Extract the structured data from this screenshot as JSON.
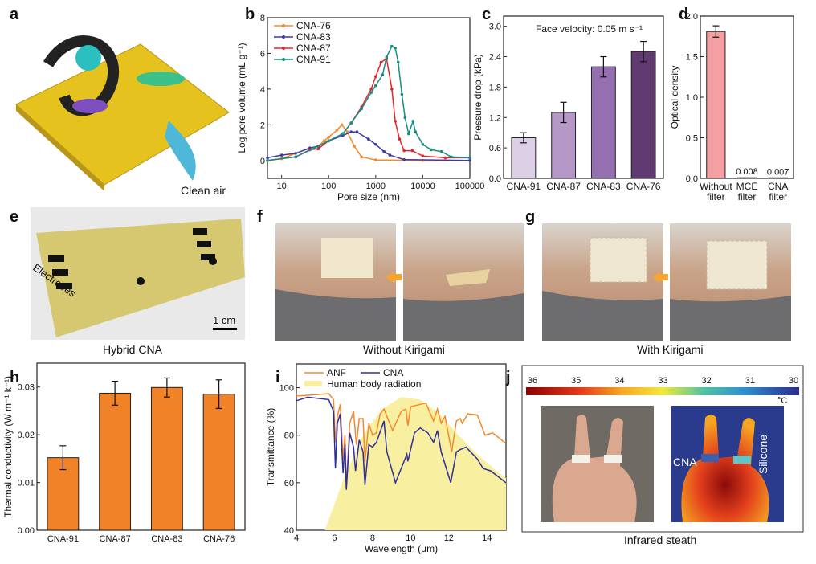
{
  "panel_labels": [
    "a",
    "b",
    "c",
    "d",
    "e",
    "f",
    "g",
    "h",
    "i",
    "j"
  ],
  "panel_a": {
    "caption": "Clean air"
  },
  "panel_e": {
    "caption": "Hybrid CNA",
    "overlay_label": "Electrodes",
    "scale_bar": "1 cm"
  },
  "panel_f": {
    "caption": "Without Kirigami"
  },
  "panel_g": {
    "caption": "With Kirigami"
  },
  "panel_j": {
    "caption": "Infrared steath",
    "colorbar_ticks": [
      "36",
      "35",
      "34",
      "33",
      "32",
      "31",
      "30"
    ],
    "colorbar_unit": "°C",
    "labels": {
      "cna": "CNA",
      "silicone": "Silicone"
    }
  },
  "colors": {
    "cna76": "#f28a2e",
    "cna83": "#3d3aa5",
    "cna87": "#e3262b",
    "cna91": "#168f83",
    "orange_bar": "#f08228",
    "pink_bar": "#f4a0a3",
    "body_radiation": "#f8f0a0"
  },
  "chart_data": [
    {
      "id": "b",
      "type": "line",
      "xlabel": "Pore size (nm)",
      "ylabel": "Log pore volume (mL g⁻¹)",
      "xscale": "log",
      "xlim": [
        5,
        100000
      ],
      "ylim": [
        -1,
        8
      ],
      "xticks": [
        "10",
        "100",
        "1000",
        "10000",
        "100000"
      ],
      "yticks": [
        "0",
        "2",
        "4",
        "6",
        "8"
      ],
      "legend_placement": "top-left",
      "series": [
        {
          "name": "CNA-76",
          "color": "#f28a2e",
          "points": [
            [
              5,
              0
            ],
            [
              10,
              0.1
            ],
            [
              20,
              0.4
            ],
            [
              40,
              0.7
            ],
            [
              60,
              0.8
            ],
            [
              80,
              1.1
            ],
            [
              100,
              1.3
            ],
            [
              150,
              1.7
            ],
            [
              190,
              2.0
            ],
            [
              250,
              1.6
            ],
            [
              350,
              0.8
            ],
            [
              500,
              0.2
            ],
            [
              1000,
              0.03
            ],
            [
              10000,
              0
            ],
            [
              100000,
              0
            ]
          ]
        },
        {
          "name": "CNA-83",
          "color": "#3d3aa5",
          "points": [
            [
              5,
              0.15
            ],
            [
              10,
              0.3
            ],
            [
              20,
              0.4
            ],
            [
              40,
              0.7
            ],
            [
              60,
              0.8
            ],
            [
              100,
              1.1
            ],
            [
              200,
              1.4
            ],
            [
              300,
              1.6
            ],
            [
              400,
              1.6
            ],
            [
              700,
              1.2
            ],
            [
              1000,
              0.9
            ],
            [
              1500,
              0.5
            ],
            [
              2000,
              0.3
            ],
            [
              4000,
              0.05
            ],
            [
              100000,
              0
            ]
          ]
        },
        {
          "name": "CNA-87",
          "color": "#e3262b",
          "points": [
            [
              5,
              0
            ],
            [
              20,
              0.2
            ],
            [
              40,
              0.6
            ],
            [
              60,
              0.65
            ],
            [
              100,
              1.1
            ],
            [
              200,
              1.5
            ],
            [
              300,
              2.1
            ],
            [
              500,
              3.0
            ],
            [
              800,
              4.0
            ],
            [
              1000,
              4.7
            ],
            [
              1300,
              5.5
            ],
            [
              1700,
              5.7
            ],
            [
              2200,
              4.0
            ],
            [
              2600,
              2.2
            ],
            [
              3200,
              1.2
            ],
            [
              4000,
              0.55
            ],
            [
              6000,
              0.55
            ],
            [
              10000,
              0.25
            ],
            [
              30000,
              0.15
            ],
            [
              100000,
              0.15
            ]
          ]
        },
        {
          "name": "CNA-91",
          "color": "#168f83",
          "points": [
            [
              5,
              0
            ],
            [
              20,
              0.2
            ],
            [
              50,
              0.7
            ],
            [
              100,
              1.1
            ],
            [
              200,
              1.5
            ],
            [
              300,
              2.1
            ],
            [
              500,
              2.9
            ],
            [
              800,
              3.8
            ],
            [
              1000,
              4.2
            ],
            [
              1400,
              4.8
            ],
            [
              1700,
              5.8
            ],
            [
              2200,
              6.4
            ],
            [
              2600,
              6.3
            ],
            [
              3000,
              5.5
            ],
            [
              3600,
              3.7
            ],
            [
              4200,
              2.4
            ],
            [
              5000,
              1.5
            ],
            [
              6200,
              2.2
            ],
            [
              7000,
              1.6
            ],
            [
              10000,
              0.9
            ],
            [
              15000,
              0.6
            ],
            [
              25000,
              0.5
            ],
            [
              40000,
              0.2
            ],
            [
              100000,
              0.15
            ]
          ]
        }
      ]
    },
    {
      "id": "c",
      "type": "bar",
      "ylabel": "Pressure drop (kPa)",
      "annotation": "Face velocity: 0.05 m s⁻¹",
      "ylim": [
        0,
        3.2
      ],
      "yticks": [
        "0.0",
        "0.6",
        "1.2",
        "1.8",
        "2.4",
        "3.0"
      ],
      "categories": [
        "CNA-91",
        "CNA-87",
        "CNA-83",
        "CNA-76"
      ],
      "values": [
        0.8,
        1.3,
        2.2,
        2.5
      ],
      "errors": [
        0.1,
        0.2,
        0.2,
        0.2
      ],
      "bar_colors": [
        "#ddcfe6",
        "#b597c8",
        "#9570b0",
        "#623a72"
      ]
    },
    {
      "id": "d",
      "type": "bar",
      "ylabel": "Optical density",
      "ylim": [
        0,
        2.0
      ],
      "yticks": [
        "0.0",
        "0.5",
        "1.0",
        "1.5",
        "2.0"
      ],
      "categories": [
        [
          "Without",
          "filter"
        ],
        [
          "MCE",
          "filter"
        ],
        [
          "CNA",
          "filter"
        ]
      ],
      "values": [
        1.81,
        0.008,
        0.007
      ],
      "errors": [
        0.07,
        0,
        0
      ],
      "data_labels": [
        "",
        "0.008",
        "0.007"
      ],
      "bar_colors": [
        "#f4a0a3",
        "#f4a0a3",
        "#f4a0a3"
      ]
    },
    {
      "id": "h",
      "type": "bar",
      "ylabel": "Thermal conductivity (W m⁻¹ k⁻¹)",
      "ylim": [
        0,
        0.035
      ],
      "yticks": [
        "0.00",
        "0.01",
        "0.02",
        "0.03"
      ],
      "categories": [
        "CNA-91",
        "CNA-87",
        "CNA-83",
        "CNA-76"
      ],
      "values": [
        0.0152,
        0.0287,
        0.0299,
        0.0285
      ],
      "errors": [
        0.0025,
        0.0025,
        0.002,
        0.003
      ],
      "bar_colors": [
        "#f08228",
        "#f08228",
        "#f08228",
        "#f08228"
      ]
    },
    {
      "id": "i",
      "type": "line",
      "xlabel": "Wavelength (μm)",
      "ylabel": "Transmittance (%)",
      "xlim": [
        4,
        15
      ],
      "ylim": [
        40,
        110
      ],
      "xticks": [
        "4",
        "6",
        "8",
        "10",
        "12",
        "14"
      ],
      "yticks": [
        "40",
        "60",
        "80",
        "100"
      ],
      "legend_placement": "top-left",
      "series": [
        {
          "name": "ANF",
          "color": "#f28a2e",
          "points": [
            [
              4,
              96.5
            ],
            [
              5,
              97
            ],
            [
              5.7,
              97.5
            ],
            [
              5.95,
              95
            ],
            [
              6.05,
              77
            ],
            [
              6.15,
              88
            ],
            [
              6.3,
              93
            ],
            [
              6.45,
              70
            ],
            [
              6.55,
              80
            ],
            [
              6.62,
              58
            ],
            [
              6.8,
              85
            ],
            [
              7,
              90
            ],
            [
              7.15,
              76
            ],
            [
              7.3,
              87
            ],
            [
              7.5,
              87
            ],
            [
              7.6,
              69
            ],
            [
              7.8,
              85
            ],
            [
              8,
              80
            ],
            [
              8.2,
              81
            ],
            [
              8.4,
              89
            ],
            [
              8.6,
              91
            ],
            [
              9.05,
              82
            ],
            [
              9.5,
              90
            ],
            [
              9.75,
              91
            ],
            [
              9.85,
              84
            ],
            [
              10,
              92
            ],
            [
              10.5,
              93
            ],
            [
              10.8,
              93.5
            ],
            [
              11.2,
              86
            ],
            [
              11.4,
              91
            ],
            [
              11.6,
              85
            ],
            [
              11.8,
              88
            ],
            [
              12.15,
              73
            ],
            [
              12.4,
              86
            ],
            [
              12.6,
              87
            ],
            [
              12.7,
              85
            ],
            [
              13,
              89
            ],
            [
              13.5,
              88.5
            ],
            [
              13.9,
              80
            ],
            [
              14.3,
              81
            ],
            [
              15,
              76.5
            ]
          ]
        },
        {
          "name": "CNA",
          "color": "#2e2f9a",
          "points": [
            [
              4,
              94.5
            ],
            [
              4.6,
              96
            ],
            [
              5.7,
              95
            ],
            [
              5.95,
              90
            ],
            [
              6.05,
              66
            ],
            [
              6.15,
              85
            ],
            [
              6.3,
              89
            ],
            [
              6.45,
              64
            ],
            [
              6.55,
              76
            ],
            [
              6.62,
              57
            ],
            [
              6.8,
              81
            ],
            [
              7,
              75
            ],
            [
              7.1,
              65
            ],
            [
              7.3,
              78
            ],
            [
              7.5,
              73
            ],
            [
              7.6,
              59
            ],
            [
              7.8,
              76
            ],
            [
              8,
              75
            ],
            [
              8.2,
              77
            ],
            [
              8.6,
              86
            ],
            [
              8.75,
              73
            ],
            [
              9.2,
              60
            ],
            [
              9.8,
              72
            ],
            [
              9.85,
              69
            ],
            [
              10.2,
              81
            ],
            [
              10.5,
              83
            ],
            [
              10.9,
              81
            ],
            [
              11.2,
              77
            ],
            [
              11.4,
              82
            ],
            [
              11.6,
              73
            ],
            [
              12.1,
              60
            ],
            [
              12.4,
              73
            ],
            [
              12.6,
              74
            ],
            [
              12.9,
              75
            ],
            [
              13.5,
              70
            ],
            [
              13.8,
              66
            ],
            [
              14.2,
              65
            ],
            [
              15,
              60
            ]
          ]
        },
        {
          "name": "Human body radiation",
          "color": "#f8f0a0",
          "fill": true,
          "points": [
            [
              5.5,
              40
            ],
            [
              6.5,
              62
            ],
            [
              7.5,
              80
            ],
            [
              8.5,
              91
            ],
            [
              9.5,
              96
            ],
            [
              10.5,
              95
            ],
            [
              11.5,
              89
            ],
            [
              12.5,
              80
            ],
            [
              13.5,
              72
            ],
            [
              14.5,
              65
            ],
            [
              15,
              62
            ]
          ]
        }
      ]
    }
  ]
}
